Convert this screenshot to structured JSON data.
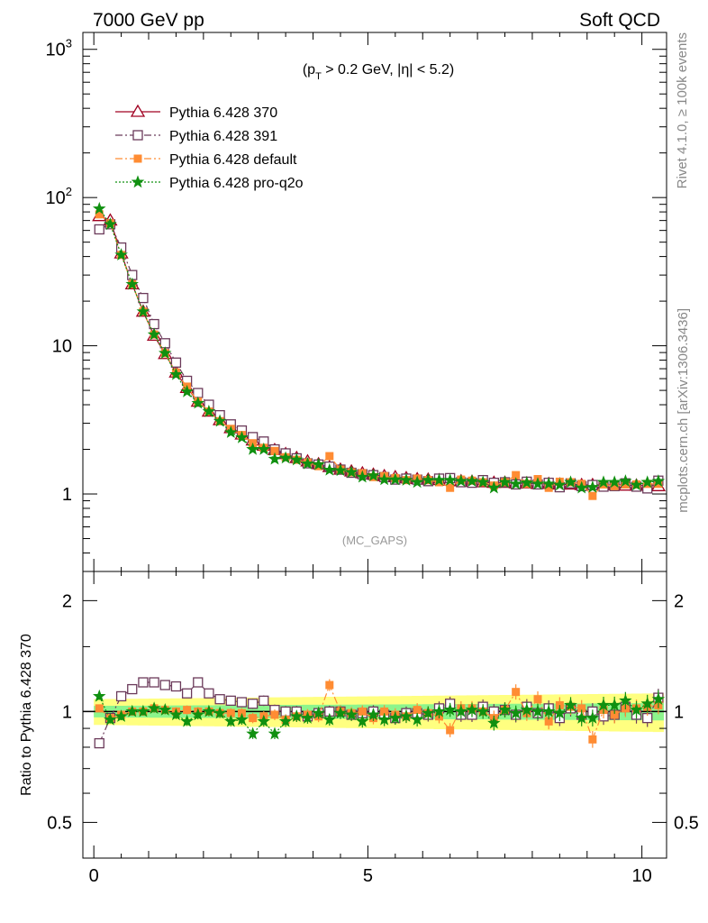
{
  "header": {
    "left_title": "7000 GeV pp",
    "right_title": "Soft QCD"
  },
  "side_labels": {
    "rivet": "Rivet 4.1.0, ≥ 100k events",
    "mcplots": "mcplots.cern.ch [arXiv:1306.3436]"
  },
  "chart_data": [
    {
      "type": "line",
      "panel": "main",
      "title": "(p_T > 0.2 GeV, |η| < 5.2)",
      "title_parts": {
        "open": "(p",
        "sub": "T",
        "rest": " > 0.2 GeV, |η| < 5.2)"
      },
      "annotation": "(MC_GAPS)",
      "yscale": "log",
      "xlim": [
        -0.2,
        10.45
      ],
      "ylim": [
        0.3,
        1300
      ],
      "x_ticks": [
        0,
        5,
        10
      ],
      "y_tick_labels": {
        "major": [
          "1",
          "10",
          "10^2",
          "10^3"
        ]
      },
      "y_tick_label_parts": [
        {
          "value": 1,
          "base": "1",
          "exp": ""
        },
        {
          "value": 10,
          "base": "10",
          "exp": ""
        },
        {
          "value": 100,
          "base": "10",
          "exp": "2"
        },
        {
          "value": 1000,
          "base": "10",
          "exp": "3"
        }
      ],
      "legend_position": "top-left",
      "x": [
        0.1,
        0.3,
        0.5,
        0.7,
        0.9,
        1.1,
        1.3,
        1.5,
        1.7,
        1.9,
        2.1,
        2.3,
        2.5,
        2.7,
        2.9,
        3.1,
        3.3,
        3.5,
        3.7,
        3.9,
        4.1,
        4.3,
        4.5,
        4.7,
        4.9,
        5.1,
        5.3,
        5.5,
        5.7,
        5.9,
        6.1,
        6.3,
        6.5,
        6.7,
        6.9,
        7.1,
        7.3,
        7.5,
        7.7,
        7.9,
        8.1,
        8.3,
        8.5,
        8.7,
        8.9,
        9.1,
        9.3,
        9.5,
        9.7,
        9.9,
        10.1,
        10.3
      ],
      "series": [
        {
          "name": "Pythia 6.428 370",
          "color": "#a00020",
          "marker": "triangle",
          "linestyle": "solid",
          "values": [
            75,
            70,
            42,
            26,
            17,
            11.7,
            8.8,
            6.6,
            5.2,
            4.2,
            3.6,
            3.15,
            2.78,
            2.52,
            2.3,
            2.12,
            1.98,
            1.86,
            1.75,
            1.66,
            1.59,
            1.52,
            1.46,
            1.42,
            1.38,
            1.35,
            1.32,
            1.3,
            1.28,
            1.26,
            1.25,
            1.24,
            1.23,
            1.22,
            1.21,
            1.2,
            1.19,
            1.19,
            1.18,
            1.18,
            1.17,
            1.17,
            1.16,
            1.16,
            1.15,
            1.15,
            1.15,
            1.15,
            1.14,
            1.14,
            1.14,
            1.13
          ]
        },
        {
          "name": "Pythia 6.428 391",
          "color": "#6b3a5a",
          "marker": "square-open",
          "linestyle": "dashdot",
          "values": [
            61,
            66,
            46,
            30,
            21,
            14,
            10.4,
            7.7,
            5.8,
            4.8,
            4.0,
            3.4,
            2.95,
            2.68,
            2.42,
            2.26,
            2.0,
            1.88,
            1.74,
            1.61,
            1.58,
            1.53,
            1.46,
            1.39,
            1.36,
            1.34,
            1.3,
            1.25,
            1.27,
            1.25,
            1.22,
            1.27,
            1.28,
            1.2,
            1.19,
            1.24,
            1.19,
            1.2,
            1.16,
            1.21,
            1.16,
            1.19,
            1.11,
            1.18,
            1.13,
            1.15,
            1.12,
            1.13,
            1.18,
            1.12,
            1.09,
            1.23
          ]
        },
        {
          "name": "Pythia 6.428 default",
          "color": "#ff8c33",
          "marker": "square-filled",
          "linestyle": "dashdot",
          "values": [
            77,
            67,
            41,
            26,
            17,
            11.9,
            8.9,
            6.6,
            5.3,
            4.2,
            3.6,
            3.1,
            2.75,
            2.5,
            2.2,
            2.05,
            1.95,
            1.77,
            1.7,
            1.63,
            1.54,
            1.8,
            1.46,
            1.4,
            1.38,
            1.3,
            1.32,
            1.28,
            1.24,
            1.27,
            1.24,
            1.2,
            1.1,
            1.25,
            1.23,
            1.2,
            1.14,
            1.2,
            1.34,
            1.17,
            1.26,
            1.1,
            1.21,
            1.2,
            1.17,
            0.97,
            1.16,
            1.13,
            1.16,
            1.16,
            1.17,
            1.17
          ]
        },
        {
          "name": "Pythia 6.428 pro-q2o",
          "color": "#109010",
          "marker": "star",
          "linestyle": "dotted",
          "values": [
            84,
            66,
            41,
            26,
            17,
            11.9,
            8.9,
            6.4,
            4.9,
            4.1,
            3.6,
            3.1,
            2.6,
            2.4,
            2.0,
            2.0,
            1.72,
            1.75,
            1.7,
            1.6,
            1.58,
            1.45,
            1.44,
            1.4,
            1.3,
            1.33,
            1.25,
            1.25,
            1.24,
            1.2,
            1.24,
            1.24,
            1.24,
            1.22,
            1.22,
            1.2,
            1.1,
            1.2,
            1.17,
            1.19,
            1.17,
            1.17,
            1.15,
            1.2,
            1.1,
            1.11,
            1.2,
            1.2,
            1.22,
            1.15,
            1.2,
            1.22
          ]
        }
      ]
    },
    {
      "type": "line",
      "panel": "ratio",
      "ylabel": "Ratio to Pythia 6.428 370",
      "yscale": "log",
      "xlim": [
        -0.2,
        10.45
      ],
      "ylim": [
        0.4,
        2.4
      ],
      "x_tick_labels": [
        "0",
        "5",
        "10"
      ],
      "x_ticks": [
        0,
        5,
        10
      ],
      "y_tick_labels": [
        "0.5",
        "1",
        "2"
      ],
      "y_ticks": [
        0.5,
        1,
        2
      ],
      "reference_line": 1,
      "bands": [
        {
          "name": "outer",
          "color": "#ffff80",
          "half_width": 0.1
        },
        {
          "name": "inner",
          "color": "#8cf58c",
          "half_width": 0.045
        }
      ],
      "series": [
        {
          "name": "Pythia 6.428 391",
          "color": "#6b3a5a",
          "marker": "square-open",
          "values": [
            0.82,
            0.96,
            1.1,
            1.15,
            1.2,
            1.2,
            1.18,
            1.17,
            1.12,
            1.2,
            1.12,
            1.08,
            1.07,
            1.06,
            1.05,
            1.07,
            1.01,
            1.0,
            1.0,
            0.97,
            0.99,
            1.0,
            1.0,
            0.98,
            0.99,
            1.0,
            0.98,
            0.96,
            0.99,
            0.99,
            0.98,
            1.02,
            1.05,
            0.98,
            0.98,
            1.03,
            1.0,
            1.01,
            0.98,
            1.03,
            0.99,
            1.02,
            0.96,
            1.02,
            0.98,
            1.0,
            0.97,
            0.98,
            1.03,
            0.98,
            0.96,
            1.09
          ]
        },
        {
          "name": "Pythia 6.428 default",
          "color": "#ff8c33",
          "marker": "square-filled",
          "values": [
            1.02,
            0.96,
            0.98,
            1.0,
            1.0,
            1.02,
            1.01,
            1.0,
            1.01,
            1.0,
            1.0,
            0.99,
            0.99,
            0.99,
            0.96,
            0.97,
            0.98,
            0.95,
            0.97,
            0.98,
            0.97,
            1.18,
            1.0,
            0.99,
            1.0,
            0.96,
            1.0,
            0.98,
            0.97,
            1.01,
            0.99,
            0.97,
            0.89,
            1.02,
            1.02,
            1.0,
            0.96,
            1.01,
            1.13,
            0.99,
            1.08,
            0.94,
            1.04,
            1.03,
            1.02,
            0.84,
            1.01,
            0.98,
            1.02,
            1.02,
            1.03,
            1.04
          ]
        },
        {
          "name": "Pythia 6.428 pro-q2o",
          "color": "#109010",
          "marker": "star",
          "values": [
            1.1,
            0.95,
            0.97,
            1.0,
            1.0,
            1.02,
            1.01,
            0.98,
            0.94,
            0.98,
            1.0,
            0.99,
            0.94,
            0.95,
            0.87,
            0.94,
            0.87,
            0.94,
            0.97,
            0.96,
            0.99,
            0.95,
            0.99,
            0.98,
            0.94,
            0.98,
            0.95,
            0.96,
            0.97,
            0.95,
            0.99,
            1.0,
            1.01,
            1.0,
            1.01,
            1.0,
            0.93,
            1.01,
            0.99,
            1.01,
            1.0,
            1.0,
            0.99,
            1.04,
            0.96,
            0.96,
            1.04,
            1.04,
            1.07,
            1.01,
            1.05,
            1.08
          ]
        }
      ]
    }
  ]
}
